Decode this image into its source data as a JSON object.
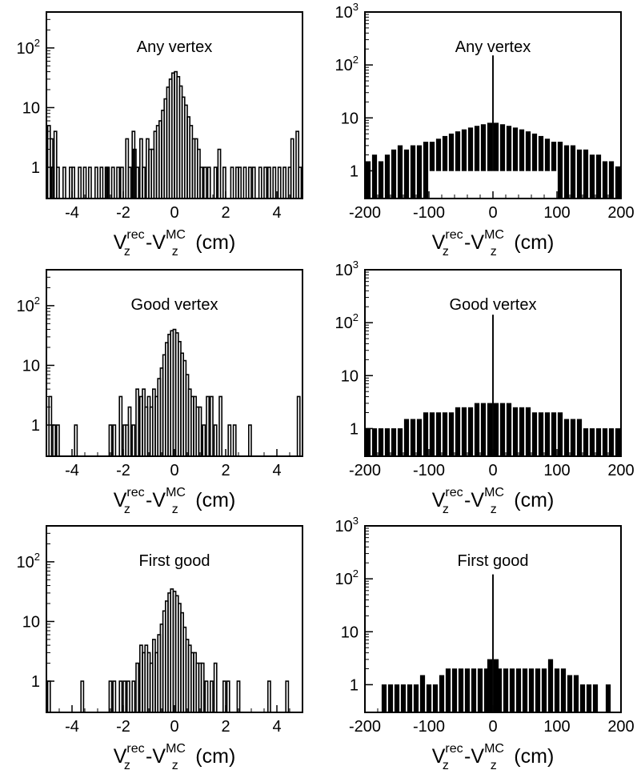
{
  "chart_data": [
    {
      "type": "histogram",
      "scale_y": "log",
      "title": "Any vertex",
      "xlim": [
        -5,
        5
      ],
      "ylim": [
        0.3,
        400
      ],
      "xticks": [
        -4,
        -2,
        0,
        2,
        4
      ],
      "yticks": [
        1,
        10,
        100
      ],
      "ytick_labels": [
        "1",
        "10",
        "10^2"
      ],
      "xlabel": {
        "base1": "V",
        "sub1": "z",
        "sup1": "rec",
        "sep": "-",
        "base2": "V",
        "sub2": "z",
        "sup2": "MC",
        "unit": "(cm)"
      },
      "x": [
        -4.9,
        -4.8,
        -4.75,
        -4.65,
        -4.55,
        -4.3,
        -4.05,
        -3.95,
        -3.7,
        -3.5,
        -3.3,
        -3.05,
        -2.85,
        -2.65,
        -2.6,
        -2.4,
        -2.2,
        -2.05,
        -1.85,
        -1.75,
        -1.6,
        -1.55,
        -1.45,
        -1.3,
        -1.2,
        -1.05,
        -0.95,
        -0.85,
        -0.75,
        -0.65,
        -0.55,
        -0.45,
        -0.35,
        -0.25,
        -0.15,
        -0.05,
        0.05,
        0.15,
        0.25,
        0.35,
        0.45,
        0.55,
        0.65,
        0.75,
        0.85,
        0.95,
        1.05,
        1.2,
        1.35,
        1.6,
        1.75,
        1.95,
        2.25,
        2.45,
        2.55,
        2.75,
        2.95,
        3.1,
        3.35,
        3.55,
        3.7,
        3.9,
        4.1,
        4.3,
        4.5,
        4.6,
        4.8,
        4.9
      ],
      "y": [
        5,
        3,
        1,
        4,
        1,
        1,
        1,
        1,
        1,
        1,
        1,
        1,
        1,
        1,
        1,
        1,
        1,
        1,
        3,
        1,
        4,
        2,
        1,
        3,
        1,
        3,
        2,
        2,
        4,
        5,
        6,
        9,
        14,
        22,
        30,
        38,
        40,
        33,
        23,
        15,
        11,
        7,
        5,
        3,
        3,
        2,
        1,
        1,
        1,
        1,
        2,
        1,
        1,
        1,
        1,
        1,
        1,
        1,
        1,
        1,
        1,
        1,
        1,
        1,
        1,
        3,
        4,
        1
      ]
    },
    {
      "type": "histogram",
      "scale_y": "log",
      "title": "Any vertex",
      "xlim": [
        -200,
        200
      ],
      "ylim": [
        0.3,
        1000
      ],
      "xticks": [
        -200,
        -100,
        0,
        100,
        200
      ],
      "yticks": [
        1,
        10,
        100,
        1000
      ],
      "ytick_labels": [
        "1",
        "10",
        "10^2",
        "10^3"
      ],
      "xlabel": {
        "base1": "V",
        "sub1": "z",
        "sup1": "rec",
        "sep": "-",
        "base2": "V",
        "sub2": "z",
        "sup2": "MC",
        "unit": "(cm)"
      },
      "x": [
        -195,
        -185,
        -175,
        -165,
        -155,
        -145,
        -135,
        -125,
        -115,
        -105,
        -95,
        -85,
        -75,
        -65,
        -55,
        -45,
        -35,
        -25,
        -15,
        -5,
        0,
        5,
        15,
        25,
        35,
        45,
        55,
        65,
        75,
        85,
        95,
        105,
        115,
        125,
        135,
        145,
        155,
        165,
        175,
        185,
        195
      ],
      "y": [
        1.5,
        2,
        1.5,
        2,
        2.5,
        3,
        2.5,
        3,
        3,
        3.5,
        3.5,
        4,
        4.5,
        5,
        5.5,
        6,
        6.5,
        7,
        7.5,
        8,
        150,
        8,
        7.5,
        7,
        6.5,
        6,
        5.5,
        5,
        4.5,
        4,
        3.5,
        3.5,
        3,
        3,
        2.5,
        2.5,
        2,
        2,
        1.5,
        1.5,
        1.2
      ],
      "y_low": [
        0.3,
        0.3,
        0.3,
        0.3,
        0.3,
        0.3,
        0.3,
        0.3,
        0.3,
        0.3,
        1,
        1,
        1,
        1,
        1,
        1,
        1,
        1,
        1,
        1,
        1,
        1,
        1,
        1,
        1,
        1,
        1,
        1,
        1,
        1,
        1,
        0.3,
        0.3,
        0.3,
        0.3,
        0.3,
        0.3,
        0.3,
        0.3,
        0.3,
        0.3
      ]
    },
    {
      "type": "histogram",
      "scale_y": "log",
      "title": "Good vertex",
      "xlim": [
        -5,
        5
      ],
      "ylim": [
        0.3,
        400
      ],
      "xticks": [
        -4,
        -2,
        0,
        2,
        4
      ],
      "yticks": [
        1,
        10,
        100
      ],
      "ytick_labels": [
        "1",
        "10",
        "10^2"
      ],
      "xlabel": {
        "base1": "V",
        "sub1": "z",
        "sup1": "rec",
        "sep": "-",
        "base2": "V",
        "sub2": "z",
        "sup2": "MC",
        "unit": "(cm)"
      },
      "x": [
        -4.85,
        -4.7,
        -4.55,
        -3.85,
        -2.5,
        -2.35,
        -2.1,
        -1.95,
        -1.85,
        -1.75,
        -1.6,
        -1.45,
        -1.3,
        -1.2,
        -1.1,
        -1.0,
        -0.9,
        -0.8,
        -0.7,
        -0.6,
        -0.5,
        -0.4,
        -0.3,
        -0.2,
        -0.1,
        0.0,
        0.1,
        0.2,
        0.3,
        0.4,
        0.5,
        0.6,
        0.7,
        0.8,
        0.9,
        1.0,
        1.15,
        1.3,
        1.45,
        1.6,
        1.8,
        2.15,
        2.35,
        2.95,
        4.85
      ],
      "y": [
        3,
        1,
        1,
        1,
        1,
        1,
        3,
        1,
        1,
        2,
        1,
        4,
        3,
        4,
        2,
        3,
        2,
        4,
        3,
        6,
        9,
        15,
        24,
        33,
        38,
        40,
        35,
        25,
        16,
        12,
        7,
        4,
        3,
        3,
        2,
        2,
        1,
        3,
        3,
        1,
        3,
        1,
        1,
        1,
        3
      ]
    },
    {
      "type": "histogram",
      "scale_y": "log",
      "title": "Good vertex",
      "xlim": [
        -200,
        200
      ],
      "ylim": [
        0.3,
        1000
      ],
      "xticks": [
        -200,
        -100,
        0,
        100,
        200
      ],
      "yticks": [
        1,
        10,
        100,
        1000
      ],
      "ytick_labels": [
        "1",
        "10",
        "10^2",
        "10^3"
      ],
      "xlabel": {
        "base1": "V",
        "sub1": "z",
        "sup1": "rec",
        "sep": "-",
        "base2": "V",
        "sub2": "z",
        "sup2": "MC",
        "unit": "(cm)"
      },
      "x": [
        -195,
        -185,
        -175,
        -165,
        -155,
        -145,
        -135,
        -125,
        -115,
        -105,
        -95,
        -85,
        -75,
        -65,
        -55,
        -45,
        -35,
        -25,
        -15,
        -5,
        0,
        5,
        15,
        25,
        35,
        45,
        55,
        65,
        75,
        85,
        95,
        105,
        115,
        125,
        135,
        145,
        155,
        165,
        175,
        185,
        195
      ],
      "y": [
        1,
        1,
        1,
        1,
        1,
        1,
        1.5,
        1.5,
        1.5,
        2,
        2,
        2,
        2,
        2,
        2.5,
        2.5,
        2.5,
        3,
        3,
        3,
        140,
        3,
        3,
        3,
        2.5,
        2.5,
        2.5,
        2,
        2,
        2,
        2,
        2,
        1.5,
        1.5,
        1.5,
        1,
        1,
        1,
        1,
        1,
        1
      ]
    },
    {
      "type": "histogram",
      "scale_y": "log",
      "title": "First good",
      "xlim": [
        -5,
        5
      ],
      "ylim": [
        0.3,
        400
      ],
      "xticks": [
        -4,
        -2,
        0,
        2,
        4
      ],
      "yticks": [
        1,
        10,
        100
      ],
      "ytick_labels": [
        "1",
        "10",
        "10^2"
      ],
      "xlabel": {
        "base1": "V",
        "sub1": "z",
        "sup1": "rec",
        "sep": "-",
        "base2": "V",
        "sub2": "z",
        "sup2": "MC",
        "unit": "(cm)"
      },
      "x": [
        -4.9,
        -3.6,
        -2.5,
        -2.35,
        -2.1,
        -1.95,
        -1.8,
        -1.6,
        -1.45,
        -1.3,
        -1.2,
        -1.1,
        -1.0,
        -0.9,
        -0.8,
        -0.7,
        -0.6,
        -0.5,
        -0.4,
        -0.3,
        -0.2,
        -0.1,
        0.0,
        0.1,
        0.2,
        0.3,
        0.4,
        0.5,
        0.6,
        0.7,
        0.8,
        0.9,
        1.0,
        1.1,
        1.25,
        1.45,
        1.6,
        1.95,
        2.1,
        2.5,
        3.7,
        4.4
      ],
      "y": [
        1,
        1,
        1,
        1,
        1,
        1,
        1,
        1,
        2,
        4,
        3,
        4,
        3,
        2,
        5,
        3,
        6,
        9,
        15,
        22,
        30,
        35,
        32,
        27,
        20,
        14,
        8,
        5,
        4,
        3,
        3,
        2,
        2,
        2,
        1,
        1,
        2,
        1,
        1,
        1,
        1,
        1
      ]
    },
    {
      "type": "histogram",
      "scale_y": "log",
      "title": "First good",
      "xlim": [
        -200,
        200
      ],
      "ylim": [
        0.3,
        1000
      ],
      "xticks": [
        -200,
        -100,
        0,
        100,
        200
      ],
      "yticks": [
        1,
        10,
        100,
        1000
      ],
      "ytick_labels": [
        "1",
        "10",
        "10^2",
        "10^3"
      ],
      "xlabel": {
        "base1": "V",
        "sub1": "z",
        "sup1": "rec",
        "sep": "-",
        "base2": "V",
        "sub2": "z",
        "sup2": "MC",
        "unit": "(cm)"
      },
      "x": [
        -170,
        -160,
        -150,
        -140,
        -130,
        -120,
        -110,
        -100,
        -90,
        -80,
        -70,
        -60,
        -50,
        -40,
        -30,
        -20,
        -10,
        -5,
        0,
        5,
        10,
        20,
        30,
        40,
        50,
        60,
        70,
        80,
        90,
        100,
        110,
        120,
        130,
        140,
        150,
        160,
        180
      ],
      "y": [
        1,
        1,
        1,
        1,
        1,
        1,
        1.5,
        1,
        1,
        1.5,
        2,
        2,
        2,
        2,
        2,
        2,
        2,
        3,
        120,
        3,
        2,
        2,
        2,
        2,
        2,
        2,
        2,
        2,
        3,
        2,
        2,
        1.5,
        1.5,
        1,
        1,
        1,
        1
      ]
    }
  ]
}
